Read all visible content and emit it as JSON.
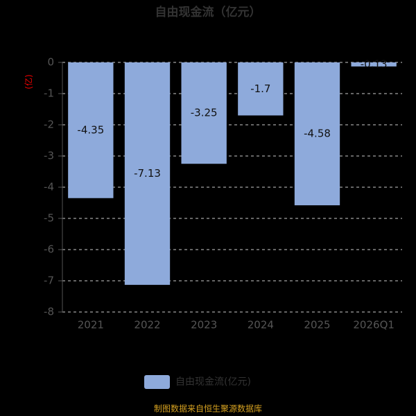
{
  "chart_data": {
    "type": "bar",
    "title": "自由现金流（亿元）",
    "y_label": "(亿)",
    "categories": [
      "2021",
      "2022",
      "2023",
      "2024",
      "2025",
      "2026Q1"
    ],
    "series": [
      {
        "name": "自由现金流(亿元)",
        "color": "#8eaadb",
        "values": [
          -4.35,
          -7.13,
          -3.25,
          -1.7,
          -4.58,
          -0.13
        ]
      }
    ],
    "ylim": [
      -8,
      0
    ],
    "yticks": [
      0,
      -1,
      -2,
      -3,
      -4,
      -5,
      -6,
      -7,
      -8
    ],
    "grid": true,
    "legend": "bottom",
    "source": "制图数据来自恒生聚源数据库"
  }
}
